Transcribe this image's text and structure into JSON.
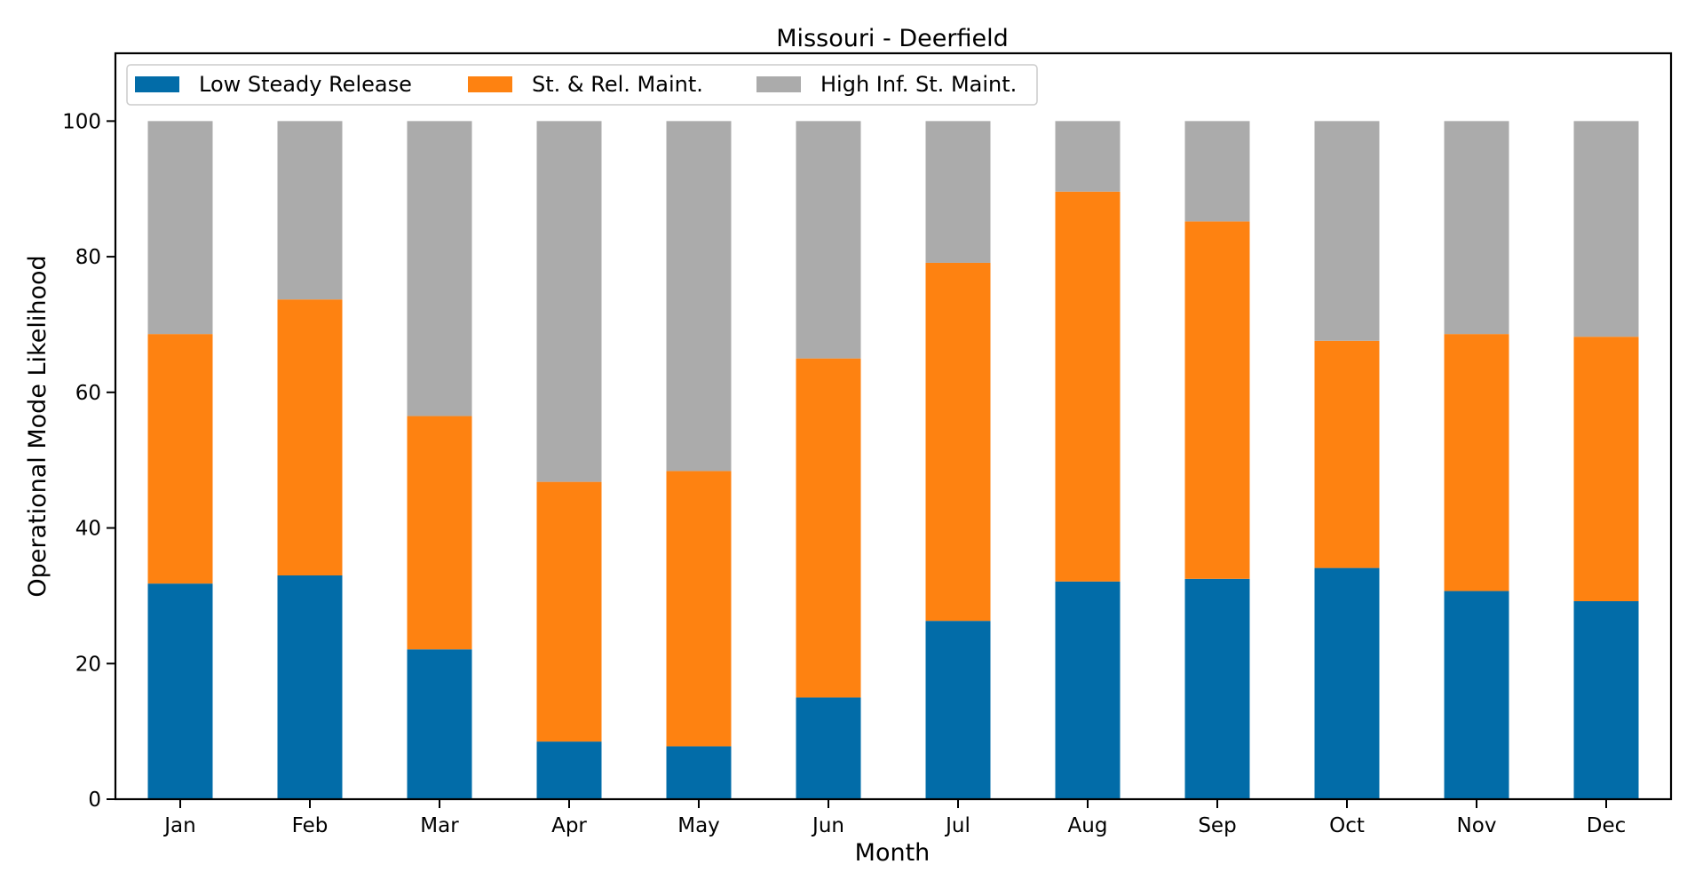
{
  "chart_data": {
    "type": "bar",
    "stacked": true,
    "title": "Missouri - Deerfield",
    "xlabel": "Month",
    "ylabel": "Operational Mode Likelihood",
    "ylim": [
      0,
      110
    ],
    "yticks": [
      0,
      20,
      40,
      60,
      80,
      100
    ],
    "grid": false,
    "legend_position": "top-left",
    "categories": [
      "Jan",
      "Feb",
      "Mar",
      "Apr",
      "May",
      "Jun",
      "Jul",
      "Aug",
      "Sep",
      "Oct",
      "Nov",
      "Dec"
    ],
    "series": [
      {
        "name": "Low Steady Release",
        "color": "#026ca8",
        "values": [
          31.8,
          33.0,
          22.1,
          8.5,
          7.8,
          15.0,
          26.3,
          32.1,
          32.5,
          34.1,
          30.7,
          29.2
        ]
      },
      {
        "name": "St. & Rel. Maint.",
        "color": "#fe8211",
        "values": [
          36.8,
          40.7,
          34.4,
          38.3,
          40.6,
          50.0,
          52.8,
          57.5,
          52.7,
          33.5,
          37.9,
          39.0
        ]
      },
      {
        "name": "High Inf. St. Maint.",
        "color": "#ababab",
        "values": [
          31.4,
          26.3,
          43.5,
          53.2,
          51.6,
          35.0,
          20.9,
          10.4,
          14.8,
          32.4,
          31.4,
          31.8
        ]
      }
    ]
  }
}
